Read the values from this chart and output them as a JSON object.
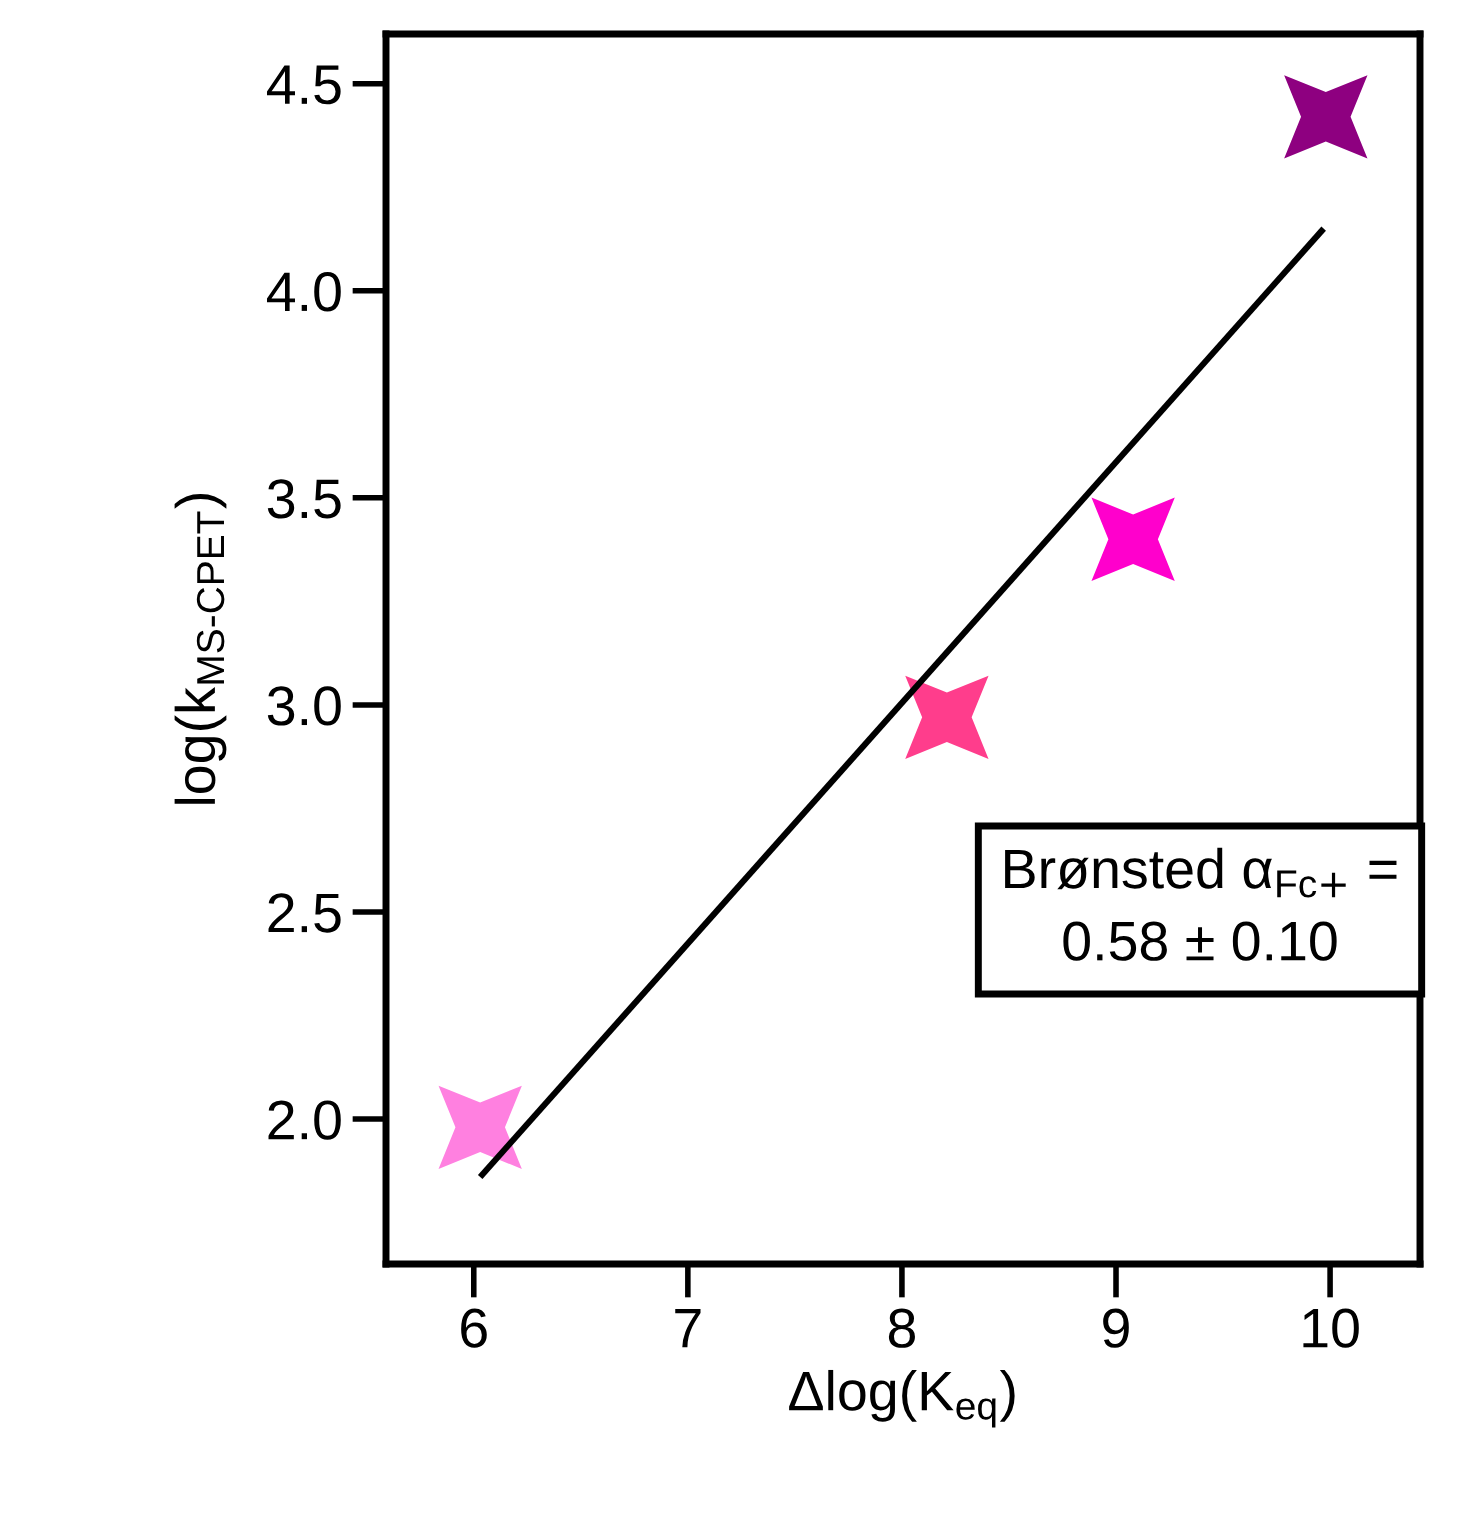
{
  "chart_data": {
    "type": "scatter",
    "xlabel": "Δlog(K$_{eq}$)",
    "ylabel": "log(k$_{MS-CPET}$)",
    "xlim": [
      5.59,
      10.42
    ],
    "xticks": [
      6,
      7,
      8,
      9,
      10
    ],
    "ylim": [
      1.65,
      4.62
    ],
    "yticks": [
      {
        "value": 2,
        "label": "2.0"
      },
      2.5,
      {
        "value": 3,
        "label": "3.0"
      },
      3.5,
      {
        "value": 4,
        "label": "4.0"
      },
      4.5
    ],
    "grid": false,
    "series": [
      {
        "marker": "star",
        "x": [
          6.03,
          8.21,
          9.08,
          9.98
        ],
        "values": [
          1.98,
          2.97,
          3.4,
          4.42
        ],
        "colors": [
          "#ff80e0",
          "#ff3d8c",
          "#ff00cc",
          "#8e0080"
        ]
      },
      {
        "type": "line",
        "marker": "none",
        "line_style": "solid",
        "color": "#000000",
        "x": [
          6.03,
          9.97
        ],
        "values": [
          1.86,
          4.15
        ]
      }
    ],
    "annotations": [
      "Brønsted α$_{Fc+}$ =\n0.58 ± 0.10"
    ]
  }
}
